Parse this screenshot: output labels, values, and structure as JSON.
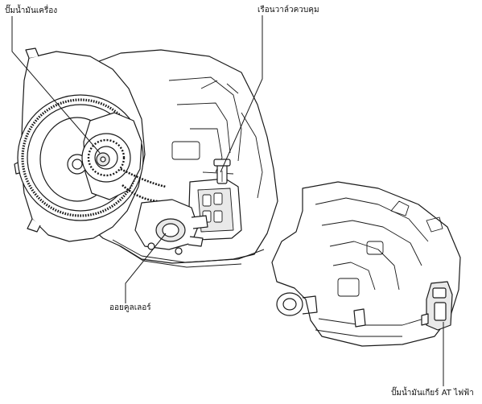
{
  "labels": {
    "engine_oil_pump": "ปั๊มน้ำมันเครื่อง",
    "valve_body": "เรือนวาล์วควบคุม",
    "oil_cooler": "ออยคูลเลอร์",
    "electric_at_pump": "ปั๊มน้ำมันเกียร์ AT ไฟฟ้า"
  },
  "colors": {
    "line": "#1a1a1a",
    "fill": "#ffffff",
    "shade": "#e9e9e9"
  }
}
